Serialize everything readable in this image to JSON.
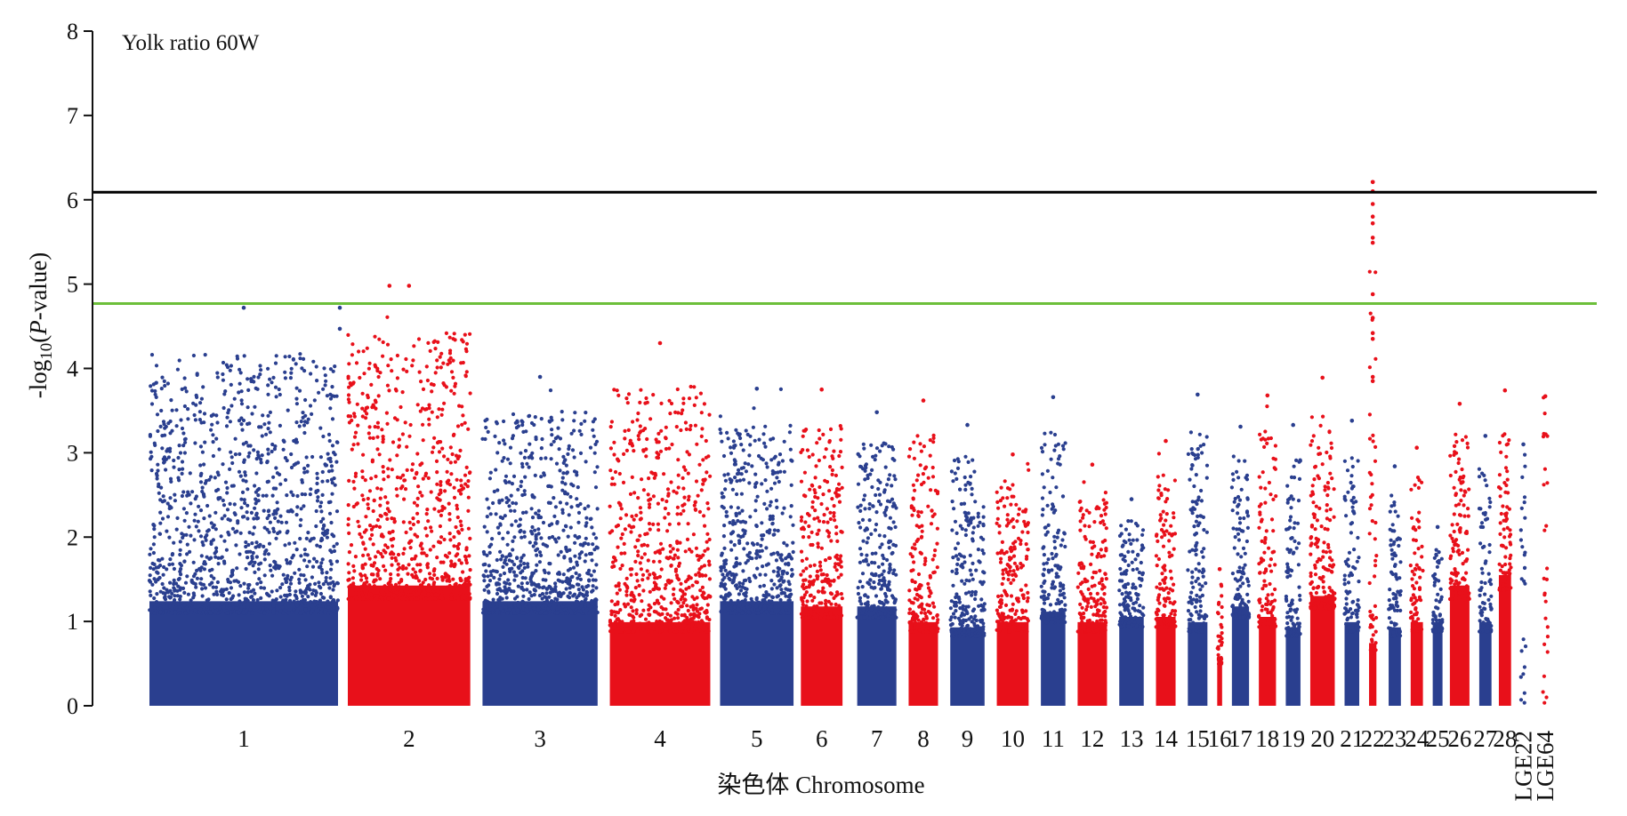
{
  "chart_data": {
    "type": "scatter",
    "subtype": "manhattan",
    "title": "Yolk ratio 60W",
    "xlabel": "染色体 Chromosome",
    "ylabel_parts": {
      "prefix": "-log",
      "subscript": "10",
      "open": "(",
      "italic": "P",
      "suffix": "-value)"
    },
    "ylim": [
      0,
      8
    ],
    "yticks": [
      "0",
      "1",
      "2",
      "3",
      "4",
      "5",
      "6",
      "7",
      "8"
    ],
    "grid": false,
    "colors": {
      "odd": "#2a3f8f",
      "even": "#e8101a",
      "genomewide_line": "#000000",
      "suggestive_line": "#6cbf3a"
    },
    "thresholds": [
      {
        "name": "genome-wide",
        "value": 6.09,
        "color": "#000000"
      },
      {
        "name": "suggestive",
        "value": 4.77,
        "color": "#6cbf3a"
      }
    ],
    "chromosomes": [
      {
        "label": "1",
        "start": 0.0,
        "end": 7.7,
        "base": 2.0,
        "peak": 4.72
      },
      {
        "label": "2",
        "start": 8.1,
        "end": 13.1,
        "base": 2.3,
        "peak": 4.98
      },
      {
        "label": "3",
        "start": 13.6,
        "end": 18.3,
        "base": 2.0,
        "peak": 3.9
      },
      {
        "label": "4",
        "start": 18.8,
        "end": 22.9,
        "base": 1.6,
        "peak": 4.3
      },
      {
        "label": "5",
        "start": 23.3,
        "end": 26.3,
        "base": 2.0,
        "peak": 3.76
      },
      {
        "label": "6",
        "start": 26.6,
        "end": 28.3,
        "base": 1.9,
        "peak": 3.75
      },
      {
        "label": "7",
        "start": 28.9,
        "end": 30.5,
        "base": 1.9,
        "peak": 3.48
      },
      {
        "label": "8",
        "start": 31.0,
        "end": 32.2,
        "base": 1.6,
        "peak": 3.62
      },
      {
        "label": "9",
        "start": 32.7,
        "end": 34.1,
        "base": 1.5,
        "peak": 3.33
      },
      {
        "label": "10",
        "start": 34.6,
        "end": 35.9,
        "base": 1.6,
        "peak": 2.98
      },
      {
        "label": "11",
        "start": 36.4,
        "end": 37.4,
        "base": 1.8,
        "peak": 3.66
      },
      {
        "label": "12",
        "start": 37.9,
        "end": 39.1,
        "base": 1.6,
        "peak": 2.86
      },
      {
        "label": "13",
        "start": 39.6,
        "end": 40.6,
        "base": 1.7,
        "peak": 2.45
      },
      {
        "label": "14",
        "start": 41.1,
        "end": 41.9,
        "base": 1.7,
        "peak": 3.14
      },
      {
        "label": "15",
        "start": 42.4,
        "end": 43.2,
        "base": 1.6,
        "peak": 3.69
      },
      {
        "label": "16",
        "start": 43.6,
        "end": 43.8,
        "base": 0.9,
        "peak": 1.62
      },
      {
        "label": "17",
        "start": 44.2,
        "end": 44.9,
        "base": 1.9,
        "peak": 3.31
      },
      {
        "label": "18",
        "start": 45.3,
        "end": 46.0,
        "base": 1.7,
        "peak": 3.68
      },
      {
        "label": "19",
        "start": 46.4,
        "end": 47.0,
        "base": 1.5,
        "peak": 3.33
      },
      {
        "label": "20",
        "start": 47.4,
        "end": 48.4,
        "base": 2.1,
        "peak": 3.89
      },
      {
        "label": "21",
        "start": 48.8,
        "end": 49.4,
        "base": 1.6,
        "peak": 3.38
      },
      {
        "label": "22",
        "start": 49.8,
        "end": 50.1,
        "base": 1.2,
        "peak": 6.21
      },
      {
        "label": "23",
        "start": 50.6,
        "end": 51.1,
        "base": 1.5,
        "peak": 2.84
      },
      {
        "label": "24",
        "start": 51.5,
        "end": 52.0,
        "base": 1.6,
        "peak": 3.06
      },
      {
        "label": "25",
        "start": 52.4,
        "end": 52.8,
        "base": 1.6,
        "peak": 2.12
      },
      {
        "label": "26",
        "start": 53.1,
        "end": 53.9,
        "base": 2.3,
        "peak": 3.58
      },
      {
        "label": "27",
        "start": 54.3,
        "end": 54.8,
        "base": 1.6,
        "peak": 3.2
      },
      {
        "label": "28",
        "start": 55.1,
        "end": 55.6,
        "base": 2.5,
        "peak": 3.74
      },
      {
        "label": "LGE22",
        "start": 56.0,
        "end": 56.2,
        "base": 0.8,
        "peak": 3.1,
        "sparse": true
      },
      {
        "label": "LGE64",
        "start": 56.9,
        "end": 57.1,
        "base": 0.7,
        "peak": 3.67,
        "sparse": true
      }
    ],
    "highlight_points": [
      {
        "chrom": "22",
        "values": [
          6.21,
          6.1,
          5.95,
          5.8,
          5.72,
          5.55,
          5.49,
          4.88,
          4.6,
          4.42,
          4.35,
          3.9,
          3.85
        ]
      },
      {
        "chrom": "2",
        "values": [
          4.98
        ]
      },
      {
        "chrom": "1",
        "values": [
          4.72,
          4.47
        ]
      }
    ]
  }
}
